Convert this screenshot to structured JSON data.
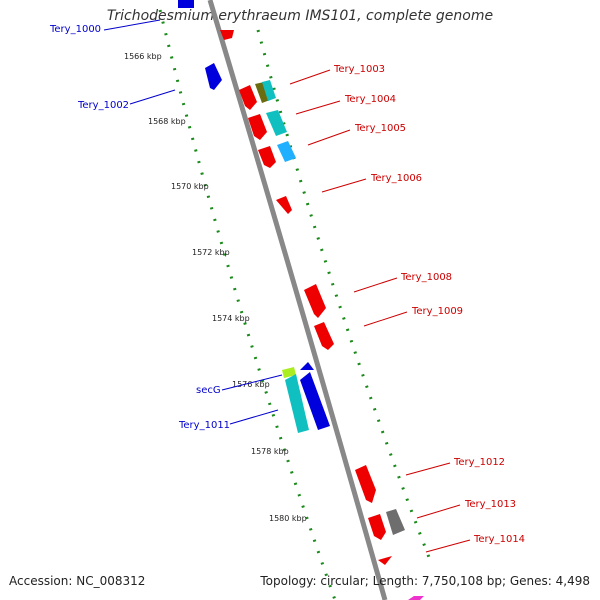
{
  "title": "Trichodesmium erythraeum IMS101, complete genome",
  "footer": {
    "accession": "Accession: NC_008312",
    "summary": "Topology: circular; Length: 7,750,108 bp; Genes: 4,498"
  },
  "kbp_ticks": [
    "1566 kbp",
    "1568 kbp",
    "1570 kbp",
    "1572 kbp",
    "1574 kbp",
    "1576 kbp",
    "1578 kbp",
    "1580 kbp"
  ],
  "genes_left": [
    "Tery_1000",
    "Tery_1002",
    "secG",
    "Tery_1011"
  ],
  "genes_right": [
    "Tery_1003",
    "Tery_1004",
    "Tery_1005",
    "Tery_1006",
    "Tery_1008",
    "Tery_1009",
    "Tery_1012",
    "Tery_1013",
    "Tery_1014"
  ],
  "colors": {
    "forward_label": "#0000cc",
    "reverse_label": "#cc0000",
    "backbone": "#888888",
    "ticks": "#1a8a1a"
  }
}
